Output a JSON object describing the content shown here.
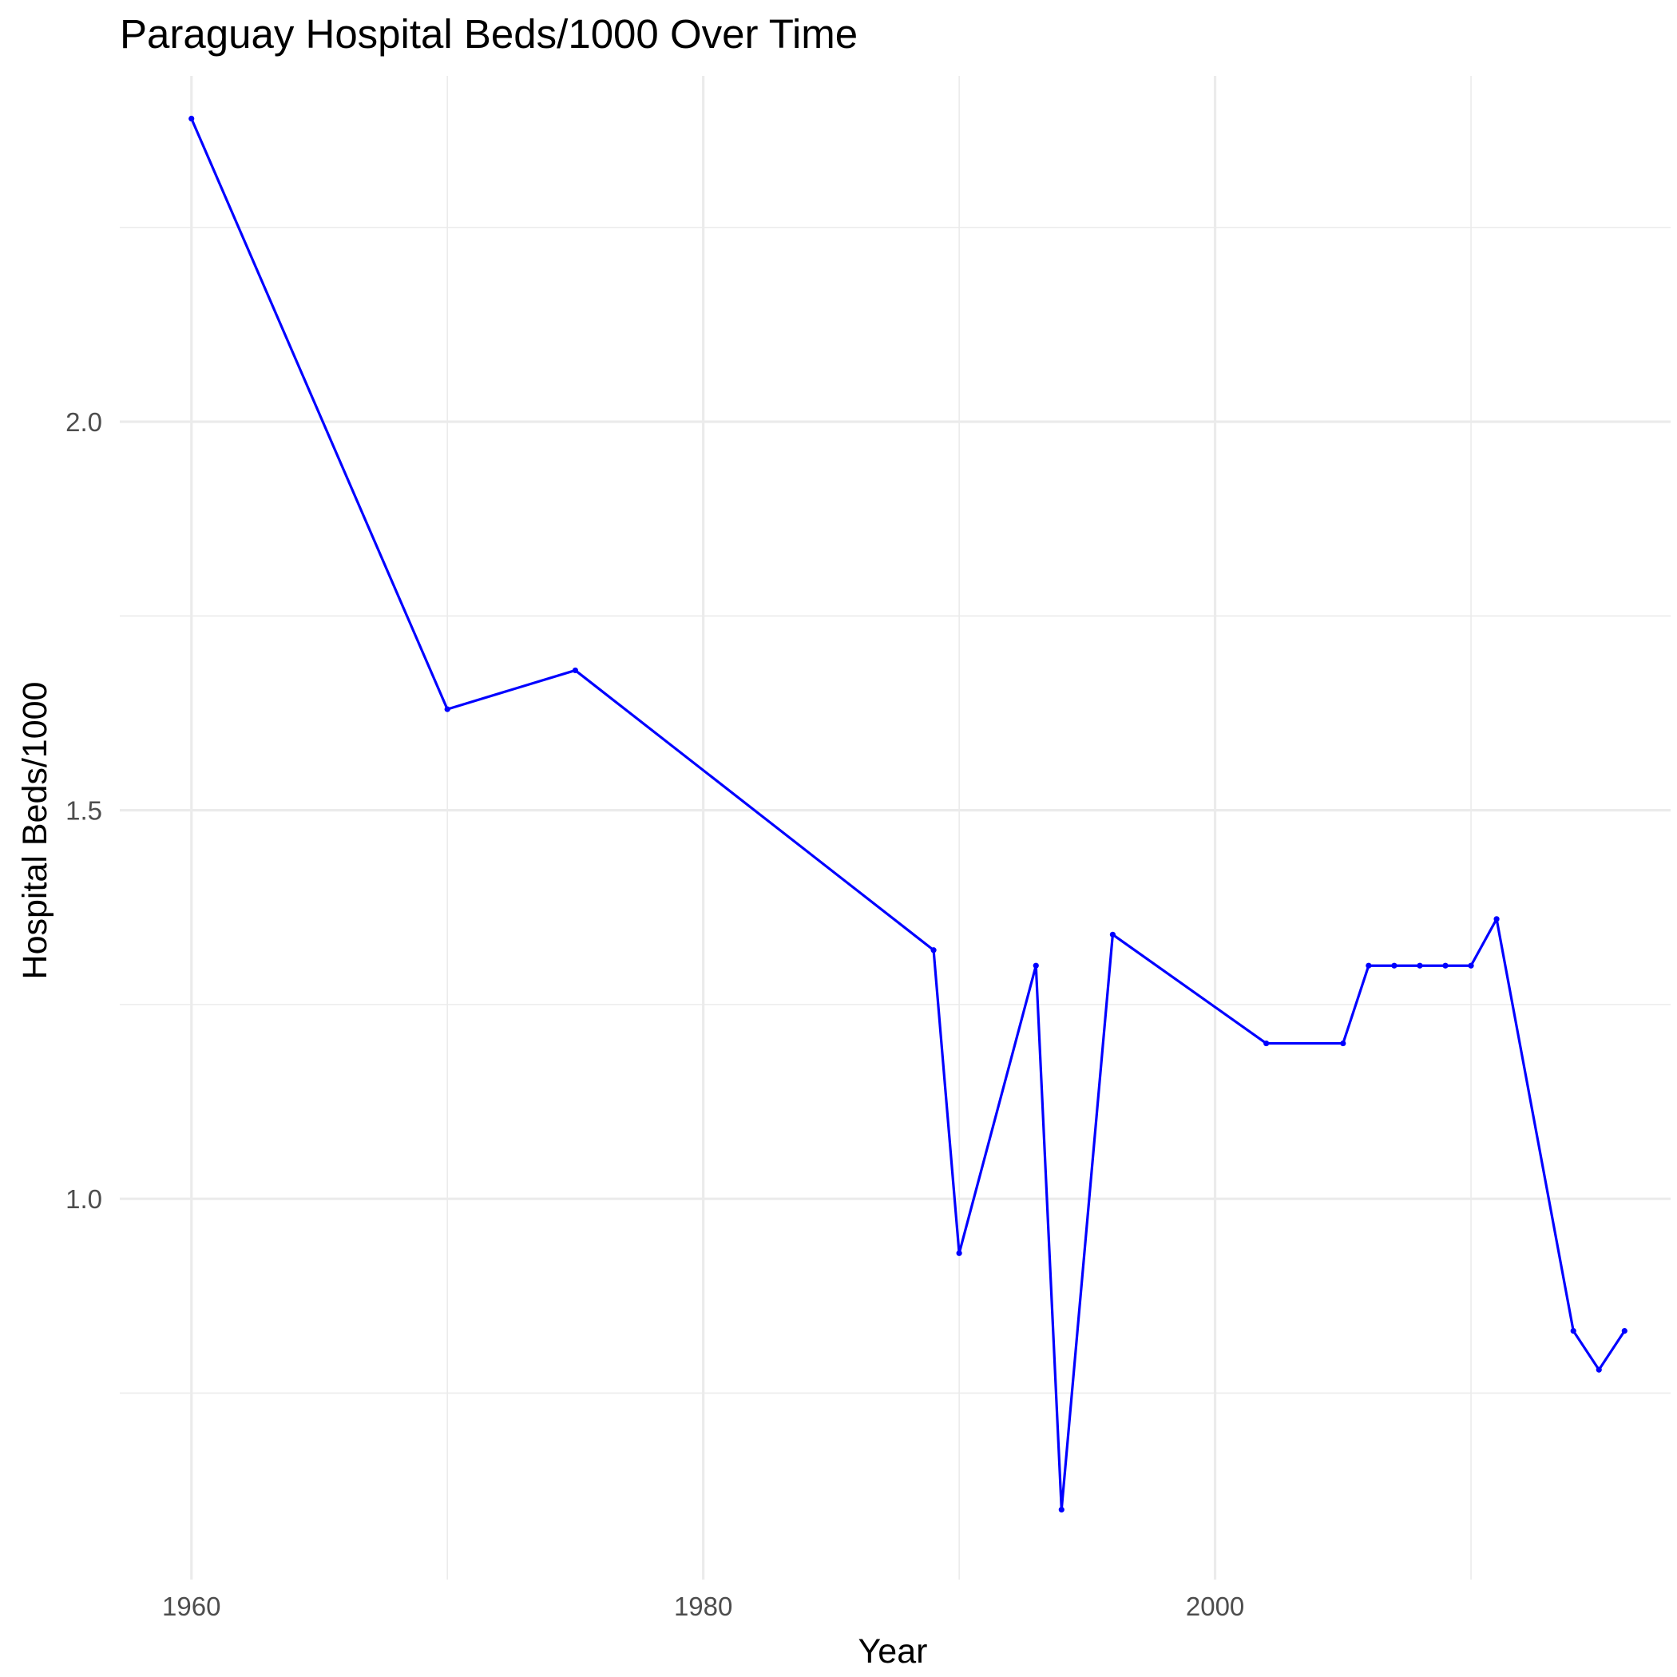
{
  "chart_data": {
    "type": "line",
    "title": "Paraguay Hospital Beds/1000 Over Time",
    "xlabel": "Year",
    "ylabel": "Hospital Beds/1000",
    "xlim": [
      1957.2,
      2017.8
    ],
    "ylim": [
      0.51,
      2.445
    ],
    "x_ticks": [
      1960,
      1980,
      2000
    ],
    "x_tick_labels": [
      "1960",
      "1980",
      "2000"
    ],
    "x_minor_ticks": [
      1970,
      1990,
      2010
    ],
    "y_ticks": [
      1.0,
      1.5,
      2.0
    ],
    "y_tick_labels": [
      "1.0",
      "1.5",
      "2.0"
    ],
    "y_minor_ticks": [
      0.75,
      1.25,
      1.75,
      2.25
    ],
    "grid": true,
    "colors": {
      "line": "#0000ff",
      "points": "#0000ff",
      "grid": "#ebebeb",
      "background": "#ffffff"
    },
    "series": [
      {
        "x": [
          1960,
          1970,
          1975,
          1989,
          1990,
          1993,
          1994,
          1996,
          2002,
          2005,
          2006,
          2007,
          2008,
          2009,
          2010,
          2011,
          2014,
          2015,
          2016
        ],
        "y": [
          2.39,
          1.63,
          1.68,
          1.32,
          0.93,
          1.3,
          0.6,
          1.34,
          1.2,
          1.2,
          1.3,
          1.3,
          1.3,
          1.3,
          1.3,
          1.36,
          0.83,
          0.78,
          0.83
        ]
      }
    ]
  }
}
